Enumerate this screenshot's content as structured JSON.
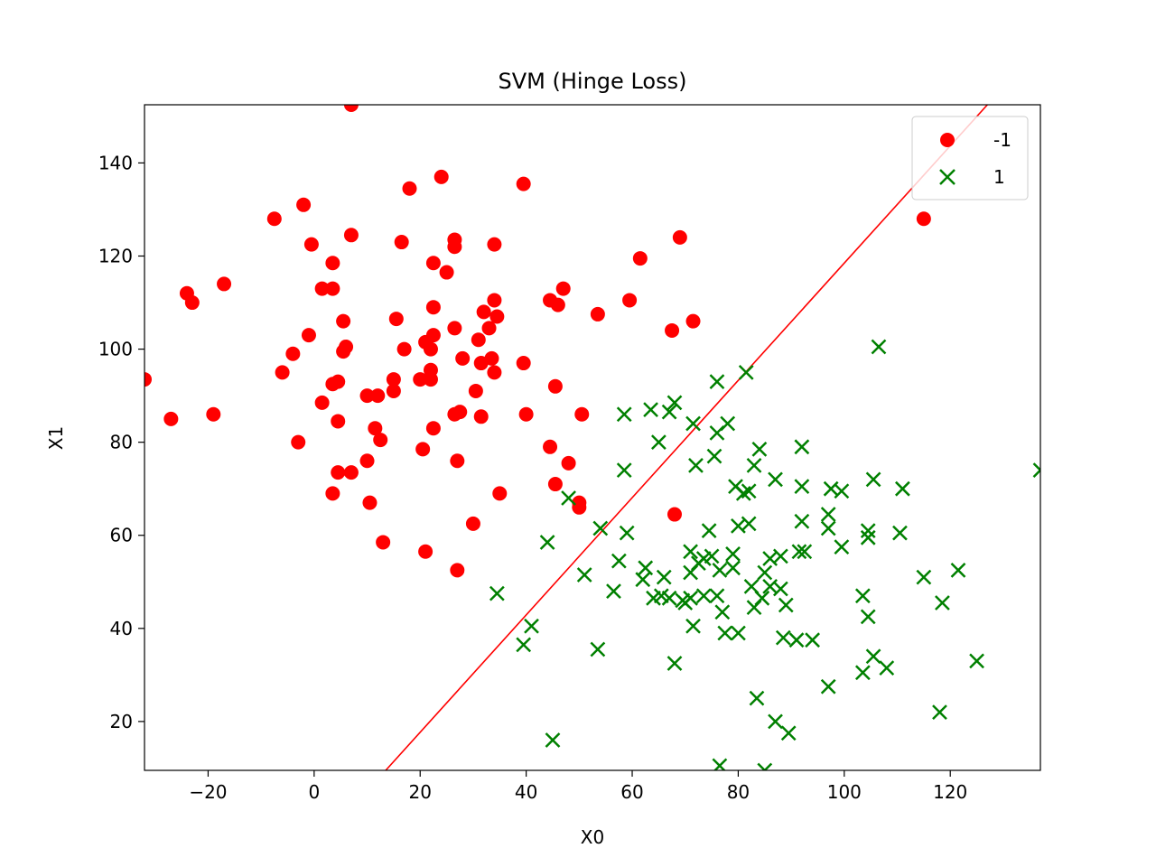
{
  "chart_data": {
    "type": "scatter",
    "title": "SVM (Hinge Loss)",
    "xlabel": "X0",
    "ylabel": "X1",
    "xlim": [
      -32,
      137
    ],
    "ylim": [
      9.5,
      152.5
    ],
    "xticks": [
      -20,
      0,
      20,
      40,
      60,
      80,
      100,
      120
    ],
    "xtick_labels": [
      "−20",
      "0",
      "20",
      "40",
      "60",
      "80",
      "100",
      "120"
    ],
    "yticks": [
      20,
      40,
      60,
      80,
      100,
      120,
      140
    ],
    "ytick_labels": [
      "20",
      "40",
      "60",
      "80",
      "100",
      "120",
      "140"
    ],
    "grid": false,
    "legend": {
      "position": "top-right"
    },
    "series": [
      {
        "name": "-1",
        "marker": "circle",
        "color": "#ff0000",
        "points": [
          [
            7,
            152.5
          ],
          [
            24,
            137
          ],
          [
            18,
            134.5
          ],
          [
            39.5,
            135.5
          ],
          [
            -2,
            131
          ],
          [
            -7.5,
            128
          ],
          [
            115,
            128
          ],
          [
            7,
            124.5
          ],
          [
            -0.5,
            122.5
          ],
          [
            16.5,
            123
          ],
          [
            26.5,
            123.5
          ],
          [
            26.5,
            122
          ],
          [
            34,
            122.5
          ],
          [
            69,
            124
          ],
          [
            3.5,
            118.5
          ],
          [
            22.5,
            118.5
          ],
          [
            25,
            116.5
          ],
          [
            61.5,
            119.5
          ],
          [
            -17,
            114
          ],
          [
            -24,
            112
          ],
          [
            -23,
            110
          ],
          [
            1.5,
            113
          ],
          [
            3.5,
            113
          ],
          [
            47,
            113
          ],
          [
            44.5,
            110.5
          ],
          [
            46,
            109.5
          ],
          [
            34,
            110.5
          ],
          [
            22.5,
            109
          ],
          [
            59.5,
            110.5
          ],
          [
            53.5,
            107.5
          ],
          [
            32,
            108
          ],
          [
            15.5,
            106.5
          ],
          [
            34.5,
            107
          ],
          [
            5.5,
            106
          ],
          [
            71.5,
            106
          ],
          [
            67.5,
            104
          ],
          [
            26.5,
            104.5
          ],
          [
            33,
            104.5
          ],
          [
            -1,
            103
          ],
          [
            22.5,
            103
          ],
          [
            21,
            101.5
          ],
          [
            31,
            102
          ],
          [
            6,
            100.5
          ],
          [
            5.5,
            99.5
          ],
          [
            17,
            100
          ],
          [
            22,
            100
          ],
          [
            -4,
            99
          ],
          [
            33.5,
            98
          ],
          [
            28,
            98
          ],
          [
            31.5,
            97
          ],
          [
            39.5,
            97
          ],
          [
            -6,
            95
          ],
          [
            4.5,
            93
          ],
          [
            3.5,
            92.5
          ],
          [
            15,
            93.5
          ],
          [
            20,
            93.5
          ],
          [
            22,
            93.5
          ],
          [
            22,
            95.5
          ],
          [
            34,
            95
          ],
          [
            15,
            91
          ],
          [
            30.5,
            91
          ],
          [
            45.5,
            92
          ],
          [
            10,
            90
          ],
          [
            12,
            90
          ],
          [
            1.5,
            88.5
          ],
          [
            27.5,
            86.5
          ],
          [
            26.5,
            86
          ],
          [
            31.5,
            85.5
          ],
          [
            40,
            86
          ],
          [
            50.5,
            86
          ],
          [
            -27,
            85
          ],
          [
            -19,
            86
          ],
          [
            4.5,
            84.5
          ],
          [
            11.5,
            83
          ],
          [
            22.5,
            83
          ],
          [
            12.5,
            80.5
          ],
          [
            -3,
            80
          ],
          [
            20.5,
            78.5
          ],
          [
            44.5,
            79
          ],
          [
            10,
            76
          ],
          [
            27,
            76
          ],
          [
            48,
            75.5
          ],
          [
            4.5,
            73.5
          ],
          [
            7,
            73.5
          ],
          [
            45.5,
            71
          ],
          [
            3.5,
            69
          ],
          [
            35,
            69
          ],
          [
            10.5,
            67
          ],
          [
            50,
            67
          ],
          [
            50,
            66
          ],
          [
            68,
            64.5
          ],
          [
            30,
            62.5
          ],
          [
            13,
            58.5
          ],
          [
            21,
            56.5
          ],
          [
            27,
            52.5
          ],
          [
            -32,
            93.5
          ]
        ]
      },
      {
        "name": "1",
        "marker": "x",
        "color": "#008000",
        "points": [
          [
            106.5,
            100.5
          ],
          [
            81.5,
            95
          ],
          [
            76,
            93
          ],
          [
            68,
            88.5
          ],
          [
            63.5,
            87
          ],
          [
            67,
            86.5
          ],
          [
            58.5,
            86
          ],
          [
            71.5,
            84
          ],
          [
            78,
            84
          ],
          [
            76,
            82
          ],
          [
            65,
            80
          ],
          [
            84,
            78.5
          ],
          [
            92,
            79
          ],
          [
            58.5,
            74
          ],
          [
            72,
            75
          ],
          [
            75.5,
            77
          ],
          [
            83,
            75
          ],
          [
            137,
            74
          ],
          [
            79.5,
            70.5
          ],
          [
            81,
            69
          ],
          [
            82,
            69.5
          ],
          [
            87,
            72
          ],
          [
            92,
            70.5
          ],
          [
            97.5,
            70
          ],
          [
            99.5,
            69.5
          ],
          [
            105.5,
            72
          ],
          [
            111,
            70
          ],
          [
            48,
            68
          ],
          [
            54,
            61.5
          ],
          [
            59,
            60.5
          ],
          [
            74.5,
            61
          ],
          [
            80,
            62
          ],
          [
            82,
            62.5
          ],
          [
            92,
            63
          ],
          [
            97,
            64.5
          ],
          [
            97,
            61.5
          ],
          [
            104.5,
            61
          ],
          [
            104.5,
            59.5
          ],
          [
            110.5,
            60.5
          ],
          [
            99.5,
            57.5
          ],
          [
            71,
            56.5
          ],
          [
            73.5,
            55
          ],
          [
            75,
            55.5
          ],
          [
            79,
            56
          ],
          [
            86,
            55
          ],
          [
            88,
            55.5
          ],
          [
            91.5,
            56.5
          ],
          [
            92.5,
            56.5
          ],
          [
            44,
            58.5
          ],
          [
            57.5,
            54.5
          ],
          [
            51,
            51.5
          ],
          [
            62.5,
            53
          ],
          [
            62,
            50.5
          ],
          [
            66,
            51
          ],
          [
            71,
            52
          ],
          [
            72.5,
            54
          ],
          [
            76.5,
            52.5
          ],
          [
            79,
            53
          ],
          [
            82.5,
            49
          ],
          [
            85,
            52
          ],
          [
            88,
            48.5
          ],
          [
            86,
            49
          ],
          [
            84.5,
            46.5
          ],
          [
            89,
            45
          ],
          [
            56.5,
            48
          ],
          [
            64,
            46.5
          ],
          [
            65.5,
            47
          ],
          [
            67,
            46.5
          ],
          [
            69.5,
            46
          ],
          [
            70,
            45.5
          ],
          [
            71,
            46.5
          ],
          [
            73.5,
            47
          ],
          [
            76,
            47
          ],
          [
            77,
            43.5
          ],
          [
            83,
            44.5
          ],
          [
            103.5,
            47
          ],
          [
            115,
            51
          ],
          [
            121.5,
            52.5
          ],
          [
            118.5,
            45.5
          ],
          [
            104.5,
            42.5
          ],
          [
            34.5,
            47.5
          ],
          [
            41,
            40.5
          ],
          [
            39.5,
            36.5
          ],
          [
            53.5,
            35.5
          ],
          [
            71.5,
            40.5
          ],
          [
            77.5,
            39
          ],
          [
            80,
            39
          ],
          [
            88.5,
            38
          ],
          [
            91,
            37.5
          ],
          [
            94,
            37.5
          ],
          [
            68,
            32.5
          ],
          [
            105.5,
            34
          ],
          [
            103.5,
            30.5
          ],
          [
            108,
            31.5
          ],
          [
            125,
            33
          ],
          [
            97,
            27.5
          ],
          [
            83.5,
            25
          ],
          [
            45,
            16
          ],
          [
            87,
            20
          ],
          [
            89.5,
            17.5
          ],
          [
            118,
            22
          ],
          [
            76.5,
            10.5
          ],
          [
            85,
            9.5
          ]
        ]
      }
    ],
    "decision_boundary": {
      "color": "#ff0000",
      "points": [
        [
          13.5,
          9.5
        ],
        [
          127,
          152.5
        ]
      ]
    }
  }
}
